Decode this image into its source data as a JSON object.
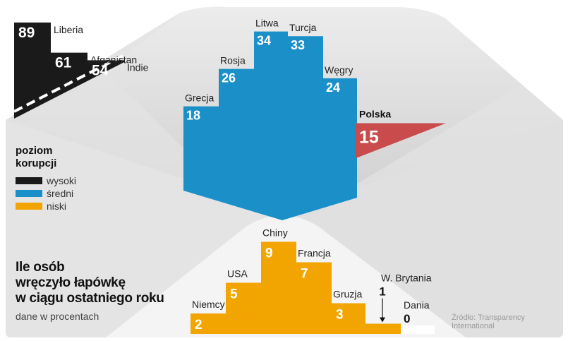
{
  "title_lines": [
    "Ile osób",
    "wręczyło łapówkę",
    "w ciągu ostatniego roku"
  ],
  "subtitle": "dane w procentach",
  "legend": {
    "title_lines": [
      "poziom",
      "korupcji"
    ],
    "items": [
      {
        "label": "wysoki",
        "color": "#1a1a1a"
      },
      {
        "label": "średni",
        "color": "#1b8fc8"
      },
      {
        "label": "niski",
        "color": "#f2a500"
      }
    ]
  },
  "highlight_color": "#c94b4b",
  "source_lines": [
    "Źródło: Transparency",
    "International"
  ],
  "chart_data": [
    {
      "type": "bar",
      "level": "wysoki",
      "categories": [
        "Liberia",
        "Afganistan",
        "Indie"
      ],
      "values": [
        89,
        61,
        54
      ]
    },
    {
      "type": "bar",
      "level": "średni",
      "categories": [
        "Grecja",
        "Rosja",
        "Litwa",
        "Turcja",
        "Węgry",
        "Polska"
      ],
      "values": [
        18,
        26,
        34,
        33,
        24,
        15
      ],
      "highlight": "Polska"
    },
    {
      "type": "bar",
      "level": "niski",
      "categories": [
        "Niemcy",
        "USA",
        "Chiny",
        "Francja",
        "Gruzja",
        "W. Brytania",
        "Dania"
      ],
      "values": [
        2,
        5,
        9,
        7,
        3,
        1,
        0
      ]
    }
  ]
}
